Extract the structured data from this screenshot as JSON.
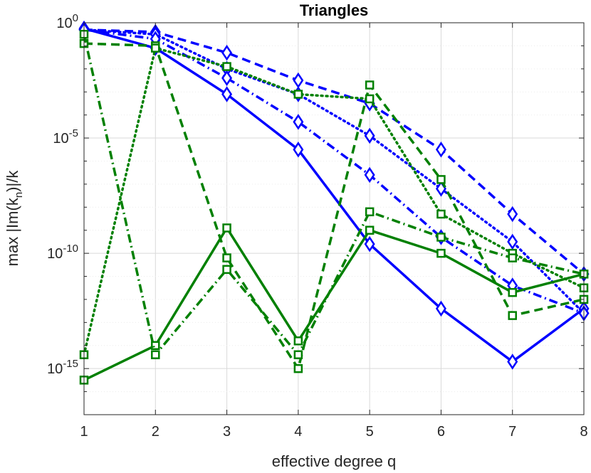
{
  "chart_data": {
    "type": "line",
    "title": "Triangles",
    "xlabel": "effective degree q",
    "ylabel_parts": {
      "prefix": "max |Im(k",
      "sub": "n",
      "suffix": ")|/k"
    },
    "yscale": "log",
    "xlim": [
      1,
      8
    ],
    "ylim_exp": [
      -17,
      0
    ],
    "xticks": [
      "1",
      "2",
      "3",
      "4",
      "5",
      "6",
      "7",
      "8"
    ],
    "yticks": [
      {
        "base": "10",
        "exp": "0",
        "value_exp": 0
      },
      {
        "base": "10",
        "exp": "-5",
        "value_exp": -5
      },
      {
        "base": "10",
        "exp": "-10",
        "value_exp": -10
      },
      {
        "base": "10",
        "exp": "-15",
        "value_exp": -15
      }
    ],
    "grid": true,
    "x": [
      1,
      2,
      3,
      4,
      5,
      6,
      7,
      8
    ],
    "series": [
      {
        "name": "blue solid diamond",
        "color": "#0000ff",
        "dash": "solid",
        "marker": "diamond",
        "log10_values": [
          -0.25,
          -1.1,
          -3.1,
          -5.5,
          -9.6,
          -12.4,
          -14.7,
          -12.4
        ]
      },
      {
        "name": "blue dashed diamond",
        "color": "#0000ff",
        "dash": "dashed",
        "marker": "diamond",
        "log10_values": [
          -0.3,
          -0.4,
          -1.3,
          -2.5,
          -3.5,
          -5.5,
          -8.3,
          -10.9
        ]
      },
      {
        "name": "blue dotted diamond",
        "color": "#0000ff",
        "dash": "dotted",
        "marker": "diamond",
        "log10_values": [
          -0.3,
          -0.5,
          -2.0,
          -3.1,
          -4.9,
          -7.2,
          -9.5,
          -12.6
        ]
      },
      {
        "name": "blue dash-dot diamond",
        "color": "#0000ff",
        "dash": "dashdot",
        "marker": "diamond",
        "log10_values": [
          -0.3,
          -0.7,
          -2.4,
          -4.3,
          -6.6,
          -9.3,
          -11.4,
          -12.6
        ]
      },
      {
        "name": "green solid square",
        "color": "#008000",
        "dash": "solid",
        "marker": "square",
        "log10_values": [
          -15.5,
          -14.0,
          -8.9,
          -13.8,
          -9.0,
          -10.0,
          -11.7,
          -10.9
        ]
      },
      {
        "name": "green dashed square",
        "color": "#008000",
        "dash": "dashed",
        "marker": "square",
        "log10_values": [
          -0.9,
          -1.0,
          -10.2,
          -15.0,
          -2.7,
          -6.8,
          -12.7,
          -12.0
        ]
      },
      {
        "name": "green dotted square",
        "color": "#008000",
        "dash": "dotted",
        "marker": "square",
        "log10_values": [
          -14.4,
          -1.1,
          -1.9,
          -3.1,
          -3.3,
          -8.3,
          -10.0,
          -11.5
        ]
      },
      {
        "name": "green dash-dot square",
        "color": "#008000",
        "dash": "dashdot",
        "marker": "square",
        "log10_values": [
          -0.5,
          -14.4,
          -10.7,
          -14.4,
          -8.2,
          -9.3,
          -10.2,
          -10.9
        ]
      }
    ]
  }
}
